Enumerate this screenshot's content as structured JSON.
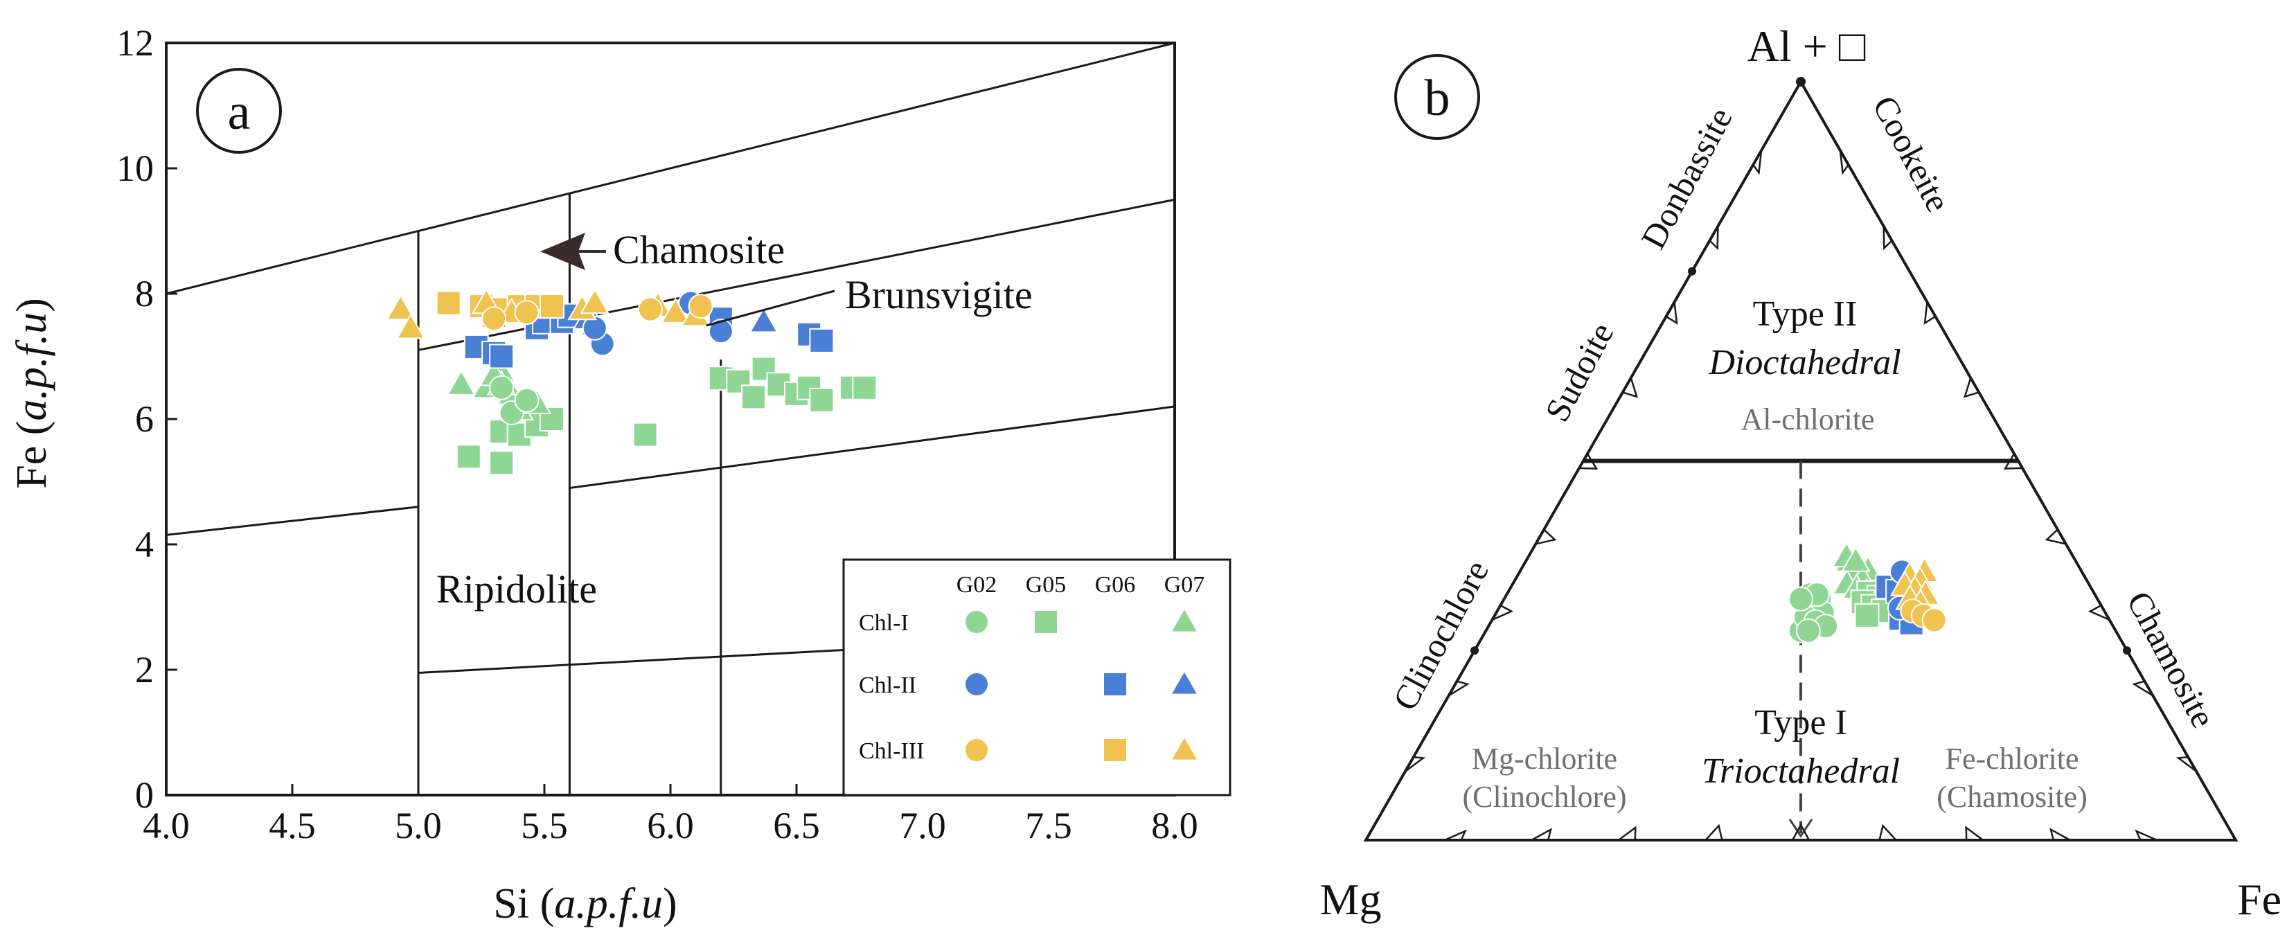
{
  "colors": {
    "green": "#8fd694",
    "blue": "#4a7fd6",
    "yellow": "#f0c24f",
    "line": "#1a1a1a",
    "gray_label": "#6f6f6f"
  },
  "chart_data": [
    {
      "type": "scatter",
      "panel_label": "a",
      "xlabel_main": "Si",
      "xlabel_unit": "a.p.f.u",
      "ylabel_main": "Fe",
      "ylabel_unit": "a.p.f.u",
      "xlim": [
        4.0,
        8.0
      ],
      "ylim": [
        0,
        12
      ],
      "x_ticks": [
        "4.0",
        "4.5",
        "5.0",
        "5.5",
        "6.0",
        "6.5",
        "7.0",
        "7.5",
        "8.0"
      ],
      "y_ticks": [
        "0",
        "2",
        "4",
        "6",
        "8",
        "10",
        "12"
      ],
      "field_labels": [
        "Chamosite",
        "Brunsvigite",
        "Ripidolite"
      ],
      "boundary_lines": [
        [
          [
            4.0,
            8.0
          ],
          [
            8.0,
            12.0
          ]
        ],
        [
          [
            5.0,
            7.1
          ],
          [
            8.0,
            9.5
          ]
        ],
        [
          [
            4.0,
            4.15
          ],
          [
            5.0,
            4.6
          ]
        ],
        [
          [
            5.6,
            4.9
          ],
          [
            8.0,
            6.2
          ]
        ],
        [
          [
            5.0,
            1.95
          ],
          [
            8.0,
            2.6
          ]
        ],
        [
          [
            5.0,
            9.0
          ],
          [
            5.0,
            0
          ]
        ],
        [
          [
            5.6,
            9.6
          ],
          [
            5.6,
            0
          ]
        ],
        [
          [
            6.2,
            6.95
          ],
          [
            6.2,
            0
          ]
        ]
      ],
      "legend": {
        "columns": [
          "G02",
          "G05",
          "G06",
          "G07"
        ],
        "rows": [
          "Chl-I",
          "Chl-II",
          "Chl-III"
        ]
      },
      "series": [
        {
          "group": "Chl-I",
          "sample": "G05",
          "marker": "square",
          "color": "green",
          "points": [
            [
              5.2,
              5.4
            ],
            [
              5.33,
              5.3
            ],
            [
              5.33,
              5.8
            ],
            [
              5.4,
              5.75
            ],
            [
              5.47,
              5.9
            ],
            [
              5.53,
              6.0
            ],
            [
              5.9,
              5.75
            ],
            [
              6.2,
              6.65
            ],
            [
              6.27,
              6.6
            ],
            [
              6.33,
              6.35
            ],
            [
              6.37,
              6.8
            ],
            [
              6.43,
              6.55
            ],
            [
              6.5,
              6.4
            ],
            [
              6.55,
              6.5
            ],
            [
              6.6,
              6.3
            ],
            [
              6.72,
              6.5
            ],
            [
              6.77,
              6.5
            ]
          ]
        },
        {
          "group": "Chl-I",
          "sample": "G07",
          "marker": "triangle",
          "color": "green",
          "points": [
            [
              5.17,
              6.55
            ],
            [
              5.27,
              6.5
            ],
            [
              5.33,
              6.75
            ],
            [
              5.37,
              6.4
            ],
            [
              5.4,
              6.15
            ],
            [
              5.47,
              6.25
            ],
            [
              5.33,
              6.55
            ],
            [
              5.3,
              6.7
            ]
          ]
        },
        {
          "group": "Chl-I",
          "sample": "G02",
          "marker": "circle",
          "color": "green",
          "points": [
            [
              5.33,
              6.5
            ],
            [
              5.37,
              6.1
            ],
            [
              5.43,
              6.3
            ]
          ]
        },
        {
          "group": "Chl-II",
          "sample": "G06",
          "marker": "square",
          "color": "blue",
          "points": [
            [
              5.23,
              7.15
            ],
            [
              5.3,
              7.05
            ],
            [
              5.33,
              7.0
            ],
            [
              5.47,
              7.45
            ],
            [
              5.5,
              7.55
            ],
            [
              5.57,
              7.55
            ],
            [
              5.6,
              7.65
            ],
            [
              5.3,
              7.65
            ],
            [
              6.2,
              7.6
            ],
            [
              6.55,
              7.35
            ],
            [
              6.6,
              7.25
            ]
          ]
        },
        {
          "group": "Chl-II",
          "sample": "G07",
          "marker": "triangle",
          "color": "blue",
          "points": [
            [
              5.67,
              7.6
            ],
            [
              5.7,
              7.5
            ],
            [
              6.37,
              7.55
            ]
          ]
        },
        {
          "group": "Chl-II",
          "sample": "G02",
          "marker": "circle",
          "color": "blue",
          "points": [
            [
              5.73,
              7.2
            ],
            [
              5.7,
              7.45
            ],
            [
              6.2,
              7.4
            ],
            [
              6.08,
              7.85
            ]
          ]
        },
        {
          "group": "Chl-III",
          "sample": "G06",
          "marker": "square",
          "color": "yellow",
          "points": [
            [
              5.12,
              7.85
            ],
            [
              5.25,
              7.8
            ],
            [
              5.33,
              7.75
            ],
            [
              5.4,
              7.8
            ],
            [
              5.47,
              7.8
            ],
            [
              5.53,
              7.8
            ]
          ]
        },
        {
          "group": "Chl-III",
          "sample": "G07",
          "marker": "triangle",
          "color": "yellow",
          "points": [
            [
              4.93,
              7.75
            ],
            [
              4.97,
              7.45
            ],
            [
              5.27,
              7.85
            ],
            [
              5.37,
              7.7
            ],
            [
              5.65,
              7.75
            ],
            [
              5.7,
              7.85
            ],
            [
              5.95,
              7.8
            ],
            [
              6.02,
              7.7
            ],
            [
              6.1,
              7.65
            ]
          ]
        },
        {
          "group": "Chl-III",
          "sample": "G02",
          "marker": "circle",
          "color": "yellow",
          "points": [
            [
              5.3,
              7.6
            ],
            [
              5.43,
              7.7
            ],
            [
              5.92,
              7.75
            ],
            [
              6.12,
              7.8
            ]
          ]
        }
      ]
    },
    {
      "type": "ternary",
      "panel_label": "b",
      "apex_top": "Al + □",
      "apex_left": "Mg",
      "apex_right": "Fe",
      "upper_field": {
        "title": "Type II",
        "subtitle": "Dioctahedral",
        "sublabel": "Al-chlorite"
      },
      "lower_field": {
        "title": "Type I",
        "subtitle": "Trioctahedral"
      },
      "mg_field": [
        "Mg-chlorite",
        "(Clinochlore)"
      ],
      "fe_field": [
        "Fe-chlorite",
        "(Chamosite)"
      ],
      "edge_labels": {
        "left_upper": "Sudoite",
        "left_top": "Donbassite",
        "right_top": "Cookeite",
        "left_lower": "Clinochlore",
        "right_lower": "Chamosite"
      },
      "divider_fraction_from_top": 0.5,
      "tick_divisions": 10,
      "points": [
        {
          "color": "green",
          "marker": "circle",
          "fe": 0.52,
          "al": 0.3,
          "count": 12
        },
        {
          "color": "green",
          "marker": "triangle",
          "fe": 0.6,
          "al": 0.35,
          "count": 10
        },
        {
          "color": "green",
          "marker": "square",
          "fe": 0.62,
          "al": 0.32,
          "count": 6
        },
        {
          "color": "blue",
          "marker": "square",
          "fe": 0.67,
          "al": 0.31,
          "count": 6
        },
        {
          "color": "blue",
          "marker": "circle",
          "fe": 0.68,
          "al": 0.33,
          "count": 3
        },
        {
          "color": "yellow",
          "marker": "triangle",
          "fe": 0.7,
          "al": 0.33,
          "count": 8
        },
        {
          "color": "yellow",
          "marker": "circle",
          "fe": 0.7,
          "al": 0.29,
          "count": 3
        }
      ]
    }
  ]
}
